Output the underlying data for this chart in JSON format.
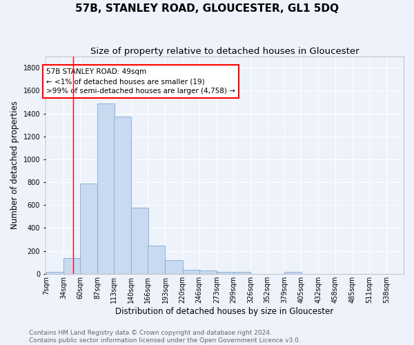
{
  "title": "57B, STANLEY ROAD, GLOUCESTER, GL1 5DQ",
  "subtitle": "Size of property relative to detached houses in Gloucester",
  "xlabel": "Distribution of detached houses by size in Gloucester",
  "ylabel": "Number of detached properties",
  "bar_color": "#c9d9f0",
  "bar_edge_color": "#7bacd4",
  "bar_left_edges": [
    7,
    34,
    60,
    87,
    113,
    140,
    166,
    193,
    220,
    246,
    273,
    299,
    326,
    352,
    379,
    405,
    432,
    458,
    485,
    511
  ],
  "bar_heights": [
    19,
    135,
    790,
    1487,
    1375,
    575,
    248,
    118,
    35,
    28,
    16,
    16,
    0,
    0,
    19,
    0,
    0,
    0,
    0,
    0
  ],
  "bin_width": 27,
  "tick_labels": [
    "7sqm",
    "34sqm",
    "60sqm",
    "87sqm",
    "113sqm",
    "140sqm",
    "166sqm",
    "193sqm",
    "220sqm",
    "246sqm",
    "273sqm",
    "299sqm",
    "326sqm",
    "352sqm",
    "379sqm",
    "405sqm",
    "432sqm",
    "458sqm",
    "485sqm",
    "511sqm",
    "538sqm"
  ],
  "tick_positions": [
    7,
    34,
    60,
    87,
    113,
    140,
    166,
    193,
    220,
    246,
    273,
    299,
    326,
    352,
    379,
    405,
    432,
    458,
    485,
    511,
    538
  ],
  "ylim": [
    0,
    1900
  ],
  "yticks": [
    0,
    200,
    400,
    600,
    800,
    1000,
    1200,
    1400,
    1600,
    1800
  ],
  "red_line_x": 49,
  "annotation_lines": [
    "57B STANLEY ROAD: 49sqm",
    "← <1% of detached houses are smaller (19)",
    ">99% of semi-detached houses are larger (4,758) →"
  ],
  "footer_line1": "Contains HM Land Registry data © Crown copyright and database right 2024.",
  "footer_line2": "Contains public sector information licensed under the Open Government Licence v3.0.",
  "bg_color": "#edf2fb",
  "plot_bg_color": "#edf2fb",
  "grid_color": "white",
  "annotation_fontsize": 7.5,
  "title_fontsize": 11,
  "subtitle_fontsize": 9.5,
  "xlabel_fontsize": 8.5,
  "ylabel_fontsize": 8.5,
  "tick_fontsize": 7,
  "footer_fontsize": 6.5
}
